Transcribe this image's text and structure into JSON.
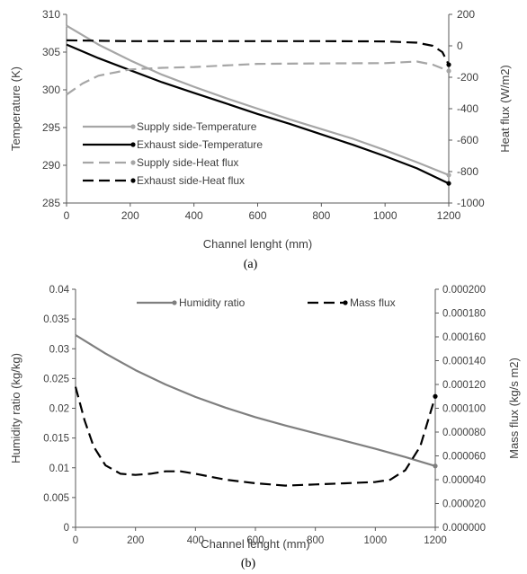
{
  "chart_data": [
    {
      "type": "line",
      "caption": "(a)",
      "xlabel": "Channel lenght (mm)",
      "ylabel": "Temperature (K)",
      "y2label": "Heat flux (W/m2)",
      "xlim": [
        0,
        1200
      ],
      "ylim": [
        285,
        310
      ],
      "y2lim": [
        -1000,
        200
      ],
      "xticks": [
        "0",
        "200",
        "400",
        "600",
        "800",
        "1000",
        "1200"
      ],
      "yticks": [
        "285",
        "290",
        "295",
        "300",
        "305",
        "310"
      ],
      "y2ticks": [
        "-1000",
        "-800",
        "-600",
        "-400",
        "-200",
        "0",
        "200"
      ],
      "legend_position": "bottom-left",
      "colors": {
        "supply": "#a6a6a6",
        "exhaust": "#000000"
      },
      "series": [
        {
          "name": "Supply side-Temperature",
          "axis": "left",
          "style": "solid",
          "color": "#a6a6a6",
          "x": [
            0,
            100,
            200,
            300,
            400,
            500,
            600,
            700,
            800,
            900,
            1000,
            1100,
            1200
          ],
          "y": [
            308.5,
            306.0,
            303.9,
            302.0,
            300.4,
            298.9,
            297.5,
            296.1,
            294.8,
            293.5,
            292.0,
            290.4,
            288.7
          ]
        },
        {
          "name": "Exhaust side-Temperature",
          "axis": "left",
          "style": "solid",
          "color": "#000000",
          "x": [
            0,
            100,
            200,
            300,
            400,
            500,
            600,
            700,
            800,
            900,
            1000,
            1100,
            1200
          ],
          "y": [
            306.0,
            304.2,
            302.6,
            301.0,
            299.6,
            298.2,
            296.8,
            295.5,
            294.1,
            292.7,
            291.2,
            289.6,
            287.6
          ]
        },
        {
          "name": "Supply side-Heat flux",
          "axis": "right",
          "style": "dashed",
          "color": "#a6a6a6",
          "x": [
            0,
            50,
            100,
            200,
            300,
            400,
            600,
            800,
            1000,
            1100,
            1150,
            1200
          ],
          "y": [
            -310,
            -240,
            -190,
            -150,
            -140,
            -135,
            -115,
            -112,
            -110,
            -100,
            -120,
            -160
          ]
        },
        {
          "name": "Exhaust side-Heat flux",
          "axis": "right",
          "style": "dashed",
          "color": "#000000",
          "x": [
            0,
            100,
            200,
            400,
            600,
            800,
            1000,
            1100,
            1150,
            1180,
            1200
          ],
          "y": [
            35,
            32,
            30,
            30,
            30,
            30,
            28,
            20,
            0,
            -40,
            -120
          ]
        }
      ]
    },
    {
      "type": "line",
      "caption": "(b)",
      "xlabel": "Channel lenght (mm)",
      "ylabel": "Humidity ratio (kg/kg)",
      "y2label": "Mass flux (kg/s m2)",
      "xlim": [
        0,
        1200
      ],
      "ylim": [
        0,
        0.04
      ],
      "y2lim": [
        0,
        0.0002
      ],
      "xticks": [
        "0",
        "200",
        "400",
        "600",
        "800",
        "1000",
        "1200"
      ],
      "yticks": [
        "0",
        "0.005",
        "0.01",
        "0.015",
        "0.02",
        "0.025",
        "0.03",
        "0.035",
        "0.04"
      ],
      "y2ticks": [
        "0.000000",
        "0.000020",
        "0.000040",
        "0.000060",
        "0.000080",
        "0.000100",
        "0.000120",
        "0.000140",
        "0.000160",
        "0.000180",
        "0.000200"
      ],
      "legend_position": "top",
      "colors": {
        "humidity": "#7f7f7f",
        "mass": "#000000"
      },
      "series": [
        {
          "name": "Humidity ratio",
          "axis": "left",
          "style": "solid",
          "color": "#7f7f7f",
          "x": [
            0,
            100,
            200,
            300,
            400,
            500,
            600,
            700,
            800,
            900,
            1000,
            1100,
            1200
          ],
          "y": [
            0.0323,
            0.0292,
            0.0264,
            0.024,
            0.0219,
            0.0201,
            0.0185,
            0.0171,
            0.0158,
            0.0145,
            0.0132,
            0.0118,
            0.0103
          ]
        },
        {
          "name": "Mass flux",
          "axis": "right",
          "style": "dashed",
          "color": "#000000",
          "x": [
            0,
            30,
            60,
            100,
            150,
            200,
            250,
            300,
            350,
            400,
            500,
            600,
            700,
            800,
            900,
            1000,
            1050,
            1100,
            1150,
            1200
          ],
          "y": [
            0.000118,
            9e-05,
            6.8e-05,
            5.2e-05,
            4.5e-05,
            4.4e-05,
            4.5e-05,
            4.7e-05,
            4.7e-05,
            4.5e-05,
            4e-05,
            3.7e-05,
            3.5e-05,
            3.6e-05,
            3.7e-05,
            3.8e-05,
            4e-05,
            4.8e-05,
            6.8e-05,
            0.00011
          ]
        }
      ]
    }
  ]
}
